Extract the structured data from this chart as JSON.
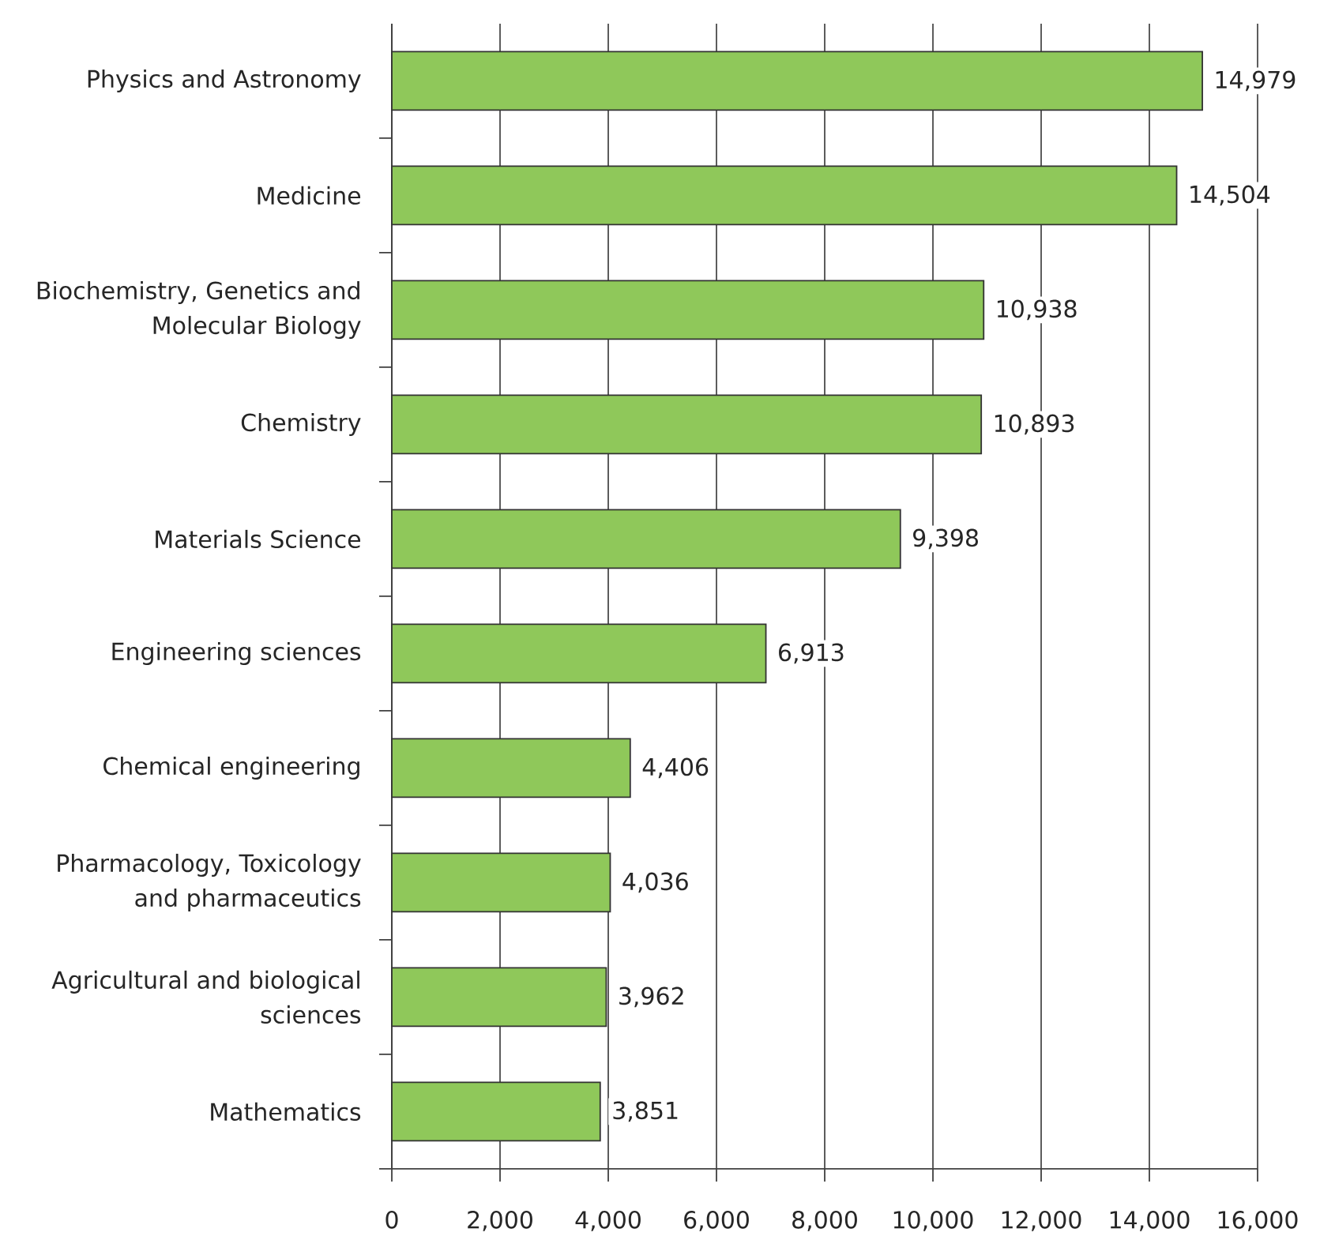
{
  "chart_data": {
    "type": "bar",
    "orientation": "horizontal",
    "categories": [
      "Physics and Astronomy",
      "Medicine",
      "Biochemistry, Genetics and Molecular Biology",
      "Chemistry",
      "Materials Science",
      "Engineering sciences",
      "Chemical engineering",
      "Pharmacology, Toxicology and pharmaceutics",
      "Agricultural and biological sciences",
      "Mathematics"
    ],
    "values": [
      14979,
      14504,
      10938,
      10893,
      9398,
      6913,
      4406,
      4036,
      3962,
      3851
    ],
    "value_labels": [
      "14,979",
      "14,504",
      "10,938",
      "10,893",
      "9,398",
      "6,913",
      "4,406",
      "4,036",
      "3,962",
      "3,851"
    ],
    "color": "#8fc85a",
    "xlim": [
      0,
      16000
    ],
    "xticks": [
      0,
      {
        "value": 2000,
        "label": "2,000"
      },
      {
        "value": 4000,
        "label": "4,000"
      },
      {
        "value": 6000,
        "label": "6,000"
      },
      {
        "value": 8000,
        "label": "8,000"
      },
      {
        "value": 10000,
        "label": "10,000"
      },
      {
        "value": 12000,
        "label": "12,000"
      },
      {
        "value": 14000,
        "label": "14,000"
      },
      {
        "value": 16000,
        "label": "16,000"
      }
    ],
    "grid": "x"
  }
}
